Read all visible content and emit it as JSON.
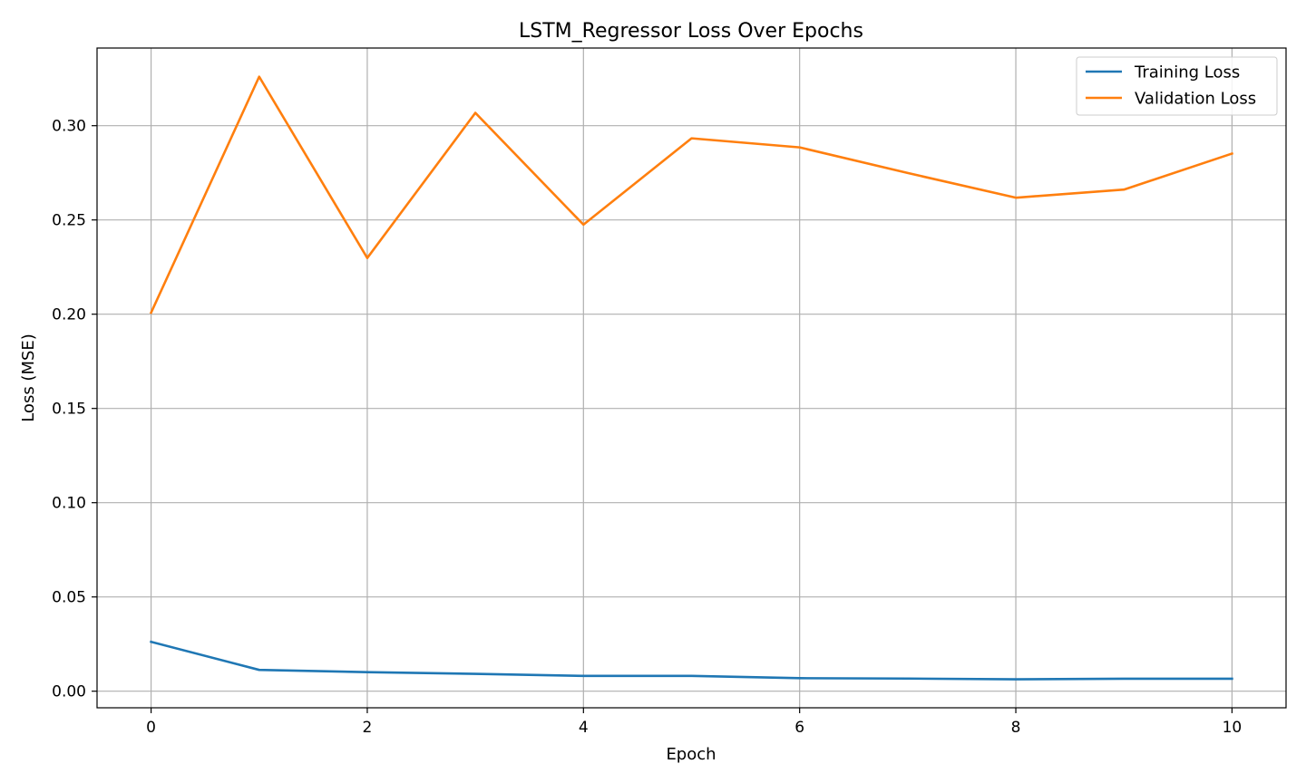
{
  "chart_data": {
    "type": "line",
    "title": "LSTM_Regressor Loss Over Epochs",
    "xlabel": "Epoch",
    "ylabel": "Loss (MSE)",
    "xlim": [
      -0.5,
      10.5
    ],
    "ylim": [
      -0.0088,
      0.3412
    ],
    "x_ticks": [
      0,
      2,
      4,
      6,
      8,
      10
    ],
    "y_ticks": [
      0.0,
      0.05,
      0.1,
      0.15,
      0.2,
      0.25,
      0.3
    ],
    "x_tick_labels": [
      "0",
      "2",
      "4",
      "6",
      "8",
      "10"
    ],
    "y_tick_labels": [
      "0.00",
      "0.05",
      "0.10",
      "0.15",
      "0.20",
      "0.25",
      "0.30"
    ],
    "grid": true,
    "legend_position": "top-right",
    "x": [
      0,
      1,
      2,
      3,
      4,
      5,
      6,
      7,
      8,
      9,
      10
    ],
    "series": [
      {
        "name": "Training Loss",
        "color": "#1f77b4",
        "values": [
          0.0262,
          0.0113,
          0.0101,
          0.0092,
          0.0081,
          0.0081,
          0.0069,
          0.0067,
          0.0063,
          0.0066,
          0.0066
        ]
      },
      {
        "name": "Validation Loss",
        "color": "#ff7f0e",
        "values": [
          0.2008,
          0.326,
          0.2298,
          0.3068,
          0.2475,
          0.2933,
          0.2885,
          0.2749,
          0.2618,
          0.2661,
          0.2852
        ]
      }
    ]
  }
}
